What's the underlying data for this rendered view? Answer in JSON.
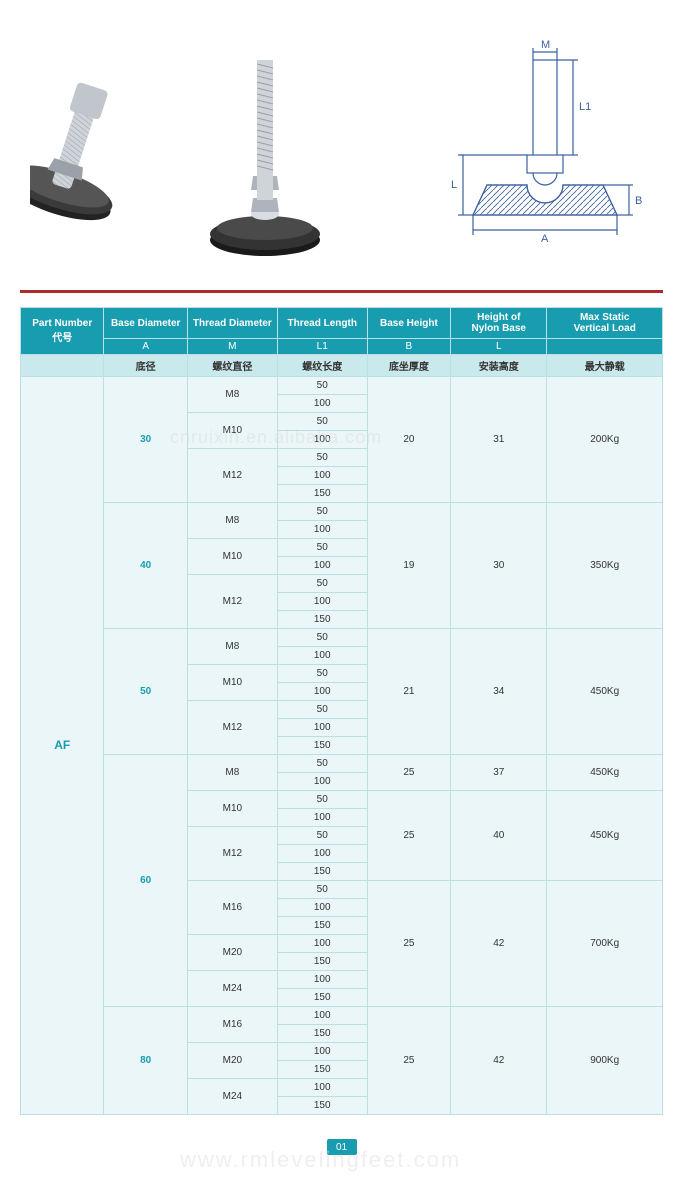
{
  "headers": {
    "part_number_en": "Part Number",
    "part_number_cn": "代号",
    "base_diameter_en": "Base Diameter",
    "thread_diameter_en": "Thread Diameter",
    "thread_length_en": "Thread Length",
    "base_height_en": "Base Height",
    "nylon_height_en": "Height of\nNylon Base",
    "max_load_en": "Max Static\nVertical Load",
    "A": "A",
    "M": "M",
    "L1": "L1",
    "B": "B",
    "L": "L",
    "base_diameter_cn": "底径",
    "thread_diameter_cn": "螺纹直径",
    "thread_length_cn": "螺纹长度",
    "base_height_cn": "底坐厚度",
    "nylon_height_cn": "安装高度",
    "max_load_cn": "最大静载"
  },
  "part_number": "AF",
  "groups": [
    {
      "base_dia": "30",
      "threads": [
        {
          "m": "M8",
          "lengths": [
            "50",
            "100"
          ]
        },
        {
          "m": "M10",
          "lengths": [
            "50",
            "100"
          ]
        },
        {
          "m": "M12",
          "lengths": [
            "50",
            "100",
            "150"
          ]
        }
      ],
      "segments": [
        {
          "span": 7,
          "B": "20",
          "L": "31",
          "load": "200Kg"
        }
      ]
    },
    {
      "base_dia": "40",
      "threads": [
        {
          "m": "M8",
          "lengths": [
            "50",
            "100"
          ]
        },
        {
          "m": "M10",
          "lengths": [
            "50",
            "100"
          ]
        },
        {
          "m": "M12",
          "lengths": [
            "50",
            "100",
            "150"
          ]
        }
      ],
      "segments": [
        {
          "span": 7,
          "B": "19",
          "L": "30",
          "load": "350Kg"
        }
      ]
    },
    {
      "base_dia": "50",
      "threads": [
        {
          "m": "M8",
          "lengths": [
            "50",
            "100"
          ]
        },
        {
          "m": "M10",
          "lengths": [
            "50",
            "100"
          ]
        },
        {
          "m": "M12",
          "lengths": [
            "50",
            "100",
            "150"
          ]
        }
      ],
      "segments": [
        {
          "span": 7,
          "B": "21",
          "L": "34",
          "load": "450Kg"
        }
      ]
    },
    {
      "base_dia": "60",
      "threads": [
        {
          "m": "M8",
          "lengths": [
            "50",
            "100"
          ]
        },
        {
          "m": "M10",
          "lengths": [
            "50",
            "100"
          ]
        },
        {
          "m": "M12",
          "lengths": [
            "50",
            "100",
            "150"
          ]
        },
        {
          "m": "M16",
          "lengths": [
            "50",
            "100",
            "150"
          ]
        },
        {
          "m": "M20",
          "lengths": [
            "100",
            "150"
          ]
        },
        {
          "m": "M24",
          "lengths": [
            "100",
            "150"
          ]
        }
      ],
      "segments": [
        {
          "span": 2,
          "B": "25",
          "L": "37",
          "load": "450Kg"
        },
        {
          "span": 5,
          "B": "25",
          "L": "40",
          "load": "450Kg"
        },
        {
          "span": 7,
          "B": "25",
          "L": "42",
          "load": "700Kg"
        }
      ]
    },
    {
      "base_dia": "80",
      "threads": [
        {
          "m": "M16",
          "lengths": [
            "100",
            "150"
          ]
        },
        {
          "m": "M20",
          "lengths": [
            "100",
            "150"
          ]
        },
        {
          "m": "M24",
          "lengths": [
            "100",
            "150"
          ]
        }
      ],
      "segments": [
        {
          "span": 6,
          "B": "25",
          "L": "42",
          "load": "900Kg"
        }
      ]
    }
  ],
  "page_number": "01",
  "watermarks": {
    "wm1": "cnruixin.en.alibaba.com",
    "wm2": "www.rmlevelingfeet.com"
  },
  "diagram_labels": {
    "A": "A",
    "B": "B",
    "L": "L",
    "L1": "L1",
    "M": "M"
  },
  "colors": {
    "header_bg": "#189db0",
    "subheader_bg": "#cae9ec",
    "cell_bg": "#eaf6f7",
    "border": "#bcdfe2",
    "divider": "#aa2d2d",
    "accent_text": "#189db0",
    "diagram_line": "#3a5fa0"
  }
}
